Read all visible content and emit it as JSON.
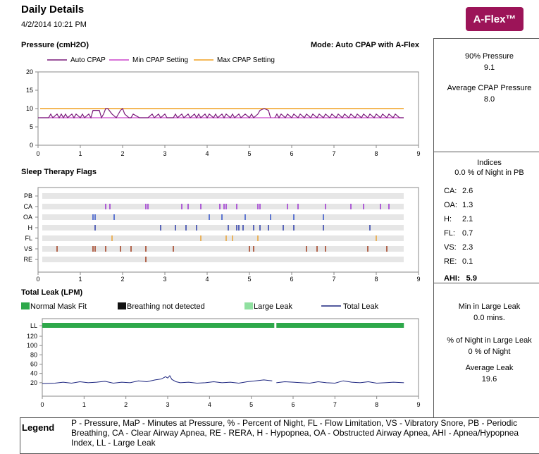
{
  "header": {
    "title": "Daily Details",
    "date": "4/2/2014 10:21 PM",
    "badge": "A-Flex™",
    "mode": "Mode: Auto CPAP with A-Flex"
  },
  "colors": {
    "auto_cpap": "#7a1a7a",
    "min_cpap": "#cc44cc",
    "max_cpap": "#f0a020",
    "badge": "#9c1458",
    "normal_fit": "#2ea84a",
    "large_leak": "#90e0a0",
    "breathing_nd": "#111111",
    "total_leak": "#1a237e"
  },
  "right_panel": {
    "pressure_90_label": "90% Pressure",
    "pressure_90_value": "9.1",
    "avg_pressure_label": "Average CPAP Pressure",
    "avg_pressure_value": "8.0",
    "indices_label": "Indices",
    "pb_text": "0.0 % of Night in PB",
    "indices": [
      {
        "label": "CA:",
        "value": "2.6"
      },
      {
        "label": "OA:",
        "value": "1.3"
      },
      {
        "label": "H:",
        "value": "2.1"
      },
      {
        "label": "FL:",
        "value": "0.7"
      },
      {
        "label": "VS:",
        "value": "2.3"
      },
      {
        "label": "RE:",
        "value": "0.1"
      }
    ],
    "ahi_label": "AHI:",
    "ahi_value": "5.9",
    "min_large_leak_label": "Min in Large Leak",
    "min_large_leak_value": "0.0 mins.",
    "pct_large_leak_label": "% of Night in Large Leak",
    "pct_large_leak_value": "0 % of Night",
    "avg_leak_label": "Average Leak",
    "avg_leak_value": "19.6"
  },
  "legend": {
    "label": "Legend",
    "text": "P - Pressure, MaP - Minutes at Pressure, % - Percent of Night, FL - Flow Limitation, VS - Vibratory Snore, PB - Periodic Breathing, CA - Clear Airway Apnea, RE - RERA, H - Hypopnea, OA - Obstructed Airway Apnea, AHI - Apnea/Hypopnea Index, LL - Large Leak"
  },
  "chart_data": [
    {
      "type": "line",
      "title": "Pressure (cmH2O)",
      "series_legend": [
        "Auto CPAP",
        "Min CPAP Setting",
        "Max CPAP Setting"
      ],
      "xlim": [
        0,
        9
      ],
      "ylim": [
        0,
        20
      ],
      "x_ticks": [
        "0",
        "1",
        "2",
        "3",
        "4",
        "5",
        "6",
        "7",
        "8",
        "9"
      ],
      "y_ticks": [
        "0",
        "5",
        "10",
        "15",
        "20"
      ],
      "min_setting": 7.5,
      "max_setting": 10,
      "auto_cpap_segments": [
        {
          "x": [
            0.0,
            0.25,
            0.3,
            0.35,
            0.45,
            0.5,
            0.55,
            0.6,
            0.65,
            0.7,
            0.8,
            0.85,
            0.9,
            1.0,
            1.05,
            1.1,
            1.2,
            1.25,
            1.3,
            1.45,
            1.5,
            1.55,
            1.6,
            1.65,
            1.75,
            1.85,
            1.95,
            2.0,
            2.05,
            2.15,
            2.2,
            2.25,
            2.4,
            2.45,
            2.55,
            2.6,
            2.7,
            2.75,
            2.85,
            2.9,
            3.0,
            3.05,
            3.2,
            3.25,
            3.3,
            3.4,
            3.45,
            3.55,
            3.6,
            3.7,
            3.75,
            3.8,
            3.85,
            3.95,
            4.0,
            4.05,
            4.15,
            4.2,
            4.25,
            4.35,
            4.4,
            4.45,
            4.55,
            4.6,
            4.65,
            4.75,
            4.8,
            4.9,
            5.0,
            5.05,
            5.1,
            5.2,
            5.25,
            5.35,
            5.45,
            5.5
          ],
          "y": [
            7.5,
            7.5,
            8.5,
            7.5,
            8.5,
            7.5,
            8.5,
            7.5,
            8.5,
            7.5,
            8.5,
            7.5,
            8.5,
            7.5,
            8.5,
            7.5,
            8.5,
            7.5,
            9.5,
            9.5,
            7.5,
            8.5,
            10,
            10,
            8.5,
            7.5,
            9.5,
            10,
            8.5,
            7.5,
            7.5,
            8.5,
            7.5,
            7.5,
            7.5,
            7.5,
            8.5,
            7.5,
            8.5,
            7.5,
            8.5,
            7.5,
            7.5,
            8.5,
            7.5,
            8.5,
            7.5,
            8.5,
            7.5,
            8.5,
            7.5,
            8.5,
            7.5,
            8.5,
            7.5,
            8.5,
            7.5,
            8.5,
            7.5,
            8.5,
            7.5,
            8.5,
            7.5,
            8.5,
            7.5,
            8.5,
            7.5,
            8.5,
            7.5,
            8.5,
            7.5,
            8.5,
            9.5,
            10,
            9.5,
            7.5
          ]
        },
        {
          "x": [
            5.6,
            5.65,
            5.7,
            5.75,
            5.85,
            5.9,
            6.0,
            6.05,
            6.15,
            6.2,
            6.3,
            6.35,
            6.45,
            6.5,
            6.6,
            6.65,
            6.75,
            6.8,
            6.9,
            6.95,
            7.05,
            7.1,
            7.2,
            7.25,
            7.35,
            7.4,
            7.5,
            7.55,
            7.65,
            7.7,
            7.8,
            7.85,
            7.95,
            8.0,
            8.1,
            8.15,
            8.25,
            8.3,
            8.4,
            8.45,
            8.55,
            8.65
          ],
          "y": [
            7.5,
            8.5,
            7.5,
            8.5,
            7.5,
            8.5,
            7.5,
            8.5,
            7.5,
            8.5,
            7.5,
            8.5,
            7.5,
            8.5,
            7.5,
            8.5,
            7.5,
            8.5,
            7.5,
            8.5,
            7.5,
            8.5,
            7.5,
            8.5,
            7.5,
            8.5,
            7.5,
            8.5,
            7.5,
            8.5,
            7.5,
            8.5,
            7.5,
            8.5,
            7.5,
            8.5,
            7.5,
            8.5,
            7.5,
            8.5,
            7.5,
            7.5
          ]
        }
      ]
    },
    {
      "type": "scatter",
      "title": "Sleep Therapy Flags",
      "xlim": [
        0,
        9
      ],
      "x_ticks": [
        "0",
        "1",
        "2",
        "3",
        "4",
        "5",
        "6",
        "7",
        "8",
        "9"
      ],
      "rows": [
        {
          "label": "PB",
          "color": "#7f2fbf",
          "x": []
        },
        {
          "label": "CA",
          "color": "#9b30d0",
          "x": [
            1.6,
            1.7,
            2.55,
            2.6,
            3.4,
            3.55,
            3.85,
            4.3,
            4.4,
            4.45,
            4.7,
            5.2,
            5.25,
            5.9,
            6.15,
            6.8,
            7.4,
            7.7,
            8.1,
            8.3
          ]
        },
        {
          "label": "OA",
          "color": "#3050c8",
          "x": [
            1.3,
            1.35,
            1.8,
            4.05,
            4.35,
            4.9,
            5.5,
            6.05,
            6.75
          ]
        },
        {
          "label": "H",
          "color": "#2a3aa8",
          "x": [
            1.35,
            2.9,
            3.25,
            3.5,
            3.75,
            4.5,
            4.7,
            4.75,
            4.85,
            5.1,
            5.25,
            5.45,
            5.8,
            6.05,
            6.75,
            7.85
          ]
        },
        {
          "label": "FL",
          "color": "#e8a030",
          "x": [
            1.75,
            3.85,
            4.45,
            4.6,
            5.2,
            8.0
          ]
        },
        {
          "label": "VS",
          "color": "#a03a1a",
          "x": [
            0.45,
            1.3,
            1.35,
            1.6,
            1.95,
            2.2,
            2.55,
            3.2,
            5.0,
            5.1,
            6.35,
            6.6,
            6.8,
            7.8,
            8.25
          ]
        },
        {
          "label": "RE",
          "color": "#a03a1a",
          "x": [
            2.55
          ]
        }
      ]
    },
    {
      "type": "line",
      "title": "Total Leak (LPM)",
      "series_legend": [
        "Normal Mask Fit",
        "Breathing not detected",
        "Large Leak",
        "Total Leak"
      ],
      "xlim": [
        0,
        9
      ],
      "ylim": [
        0,
        130
      ],
      "x_ticks": [
        "0",
        "1",
        "2",
        "3",
        "4",
        "5",
        "6",
        "7",
        "8",
        "9"
      ],
      "y_ticks": [
        "LL",
        "120",
        "100",
        "80",
        "60",
        "40",
        "20"
      ],
      "normal_fit_segments": [
        [
          0,
          5.55
        ],
        [
          5.6,
          8.65
        ]
      ],
      "total_leak_segments": [
        {
          "x": [
            0.0,
            0.3,
            0.5,
            0.7,
            0.9,
            1.1,
            1.3,
            1.5,
            1.7,
            1.9,
            2.1,
            2.3,
            2.5,
            2.7,
            2.85,
            2.95,
            3.0,
            3.05,
            3.1,
            3.2,
            3.3,
            3.5,
            3.7,
            3.9,
            4.1,
            4.3,
            4.5,
            4.7,
            4.9,
            5.1,
            5.3,
            5.5
          ],
          "y": [
            18,
            19,
            21,
            19,
            22,
            20,
            21,
            23,
            19,
            21,
            20,
            24,
            22,
            26,
            28,
            33,
            30,
            35,
            27,
            22,
            20,
            21,
            19,
            20,
            22,
            20,
            21,
            19,
            22,
            24,
            26,
            24
          ]
        },
        {
          "x": [
            5.6,
            5.8,
            6.0,
            6.2,
            6.4,
            6.6,
            6.8,
            7.0,
            7.2,
            7.4,
            7.6,
            7.8,
            8.0,
            8.2,
            8.4,
            8.65
          ],
          "y": [
            20,
            22,
            21,
            20,
            19,
            22,
            20,
            19,
            24,
            21,
            20,
            22,
            19,
            20,
            21,
            20
          ]
        }
      ]
    }
  ]
}
